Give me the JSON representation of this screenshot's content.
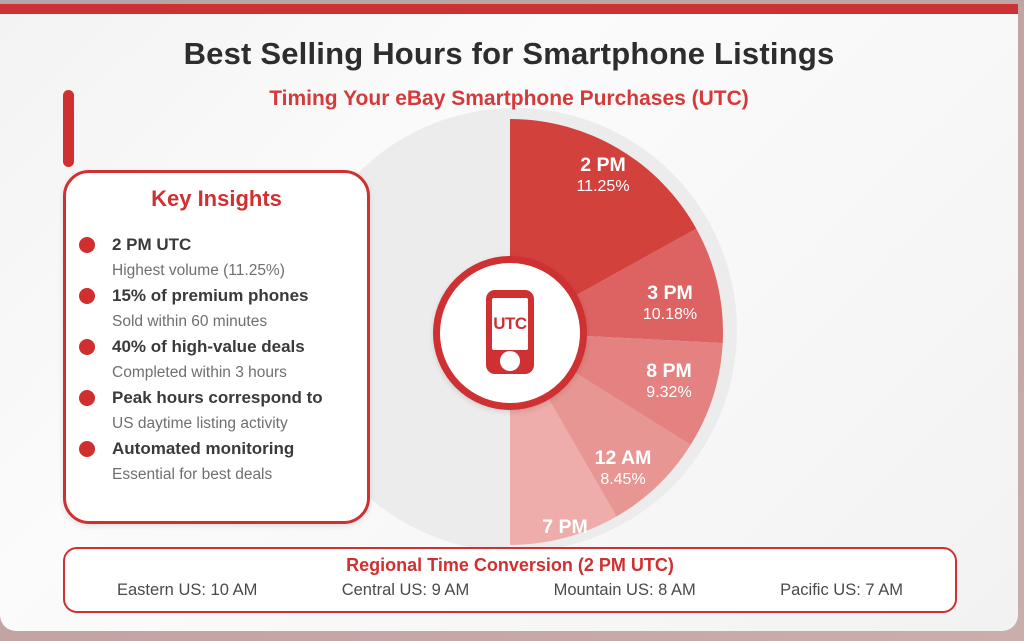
{
  "header": {
    "title": "Best Selling Hours for Smartphone Listings",
    "subtitle": "Timing Your eBay Smartphone Purchases (UTC)"
  },
  "insights": {
    "title": "Key Insights",
    "items": [
      {
        "title": "2 PM UTC",
        "subtitle": "Highest volume (11.25%)"
      },
      {
        "title": "15% of premium phones",
        "subtitle": "Sold within 60 minutes"
      },
      {
        "title": "40% of high-value deals",
        "subtitle": "Completed within 3 hours"
      },
      {
        "title": "Peak hours correspond to",
        "subtitle": "US daytime listing activity"
      },
      {
        "title": "Automated monitoring",
        "subtitle": "Essential for best deals"
      }
    ]
  },
  "chart_data": {
    "type": "pie",
    "title": "Best Selling Hours for Smartphone Listings",
    "subtitle": "Timing Your eBay Smartphone Purchases (UTC)",
    "center_label": "UTC",
    "legend_position": "labels-on-slices",
    "layout": "half-pie on right side of a gray disc, slices start at 12 o'clock going clockwise",
    "background_disc_color": "#ececec",
    "slices": [
      {
        "label": "2 PM",
        "value": 11.25,
        "value_display": "11.25%",
        "color": "#d3413d",
        "start_angle": 0,
        "end_angle": 61
      },
      {
        "label": "3 PM",
        "value": 10.18,
        "value_display": "10.18%",
        "color": "#dc6361",
        "start_angle": 61,
        "end_angle": 93
      },
      {
        "label": "8 PM",
        "value": 9.32,
        "value_display": "9.32%",
        "color": "#e38280",
        "start_angle": 93,
        "end_angle": 122
      },
      {
        "label": "12 AM",
        "value": 8.45,
        "value_display": "8.45%",
        "color": "#e79693",
        "start_angle": 122,
        "end_angle": 150
      },
      {
        "label": "7 PM",
        "value": null,
        "value_display": "",
        "color": "#eeacaa",
        "start_angle": 150,
        "end_angle": 180
      }
    ]
  },
  "footer": {
    "title": "Regional Time Conversion (2 PM UTC)",
    "items": [
      "Eastern US: 10 AM",
      "Central US: 9 AM",
      "Mountain US: 8 AM",
      "Pacific US: 7 AM"
    ]
  },
  "colors": {
    "accent": "#cf3132",
    "top_bar": "#cc3134",
    "title_text": "#2d2d2d",
    "red_text": "#d43a3a",
    "body_text": "#3a3a3a",
    "muted_text": "#6f6f6f",
    "outer_frame": "#c2a4a3"
  }
}
